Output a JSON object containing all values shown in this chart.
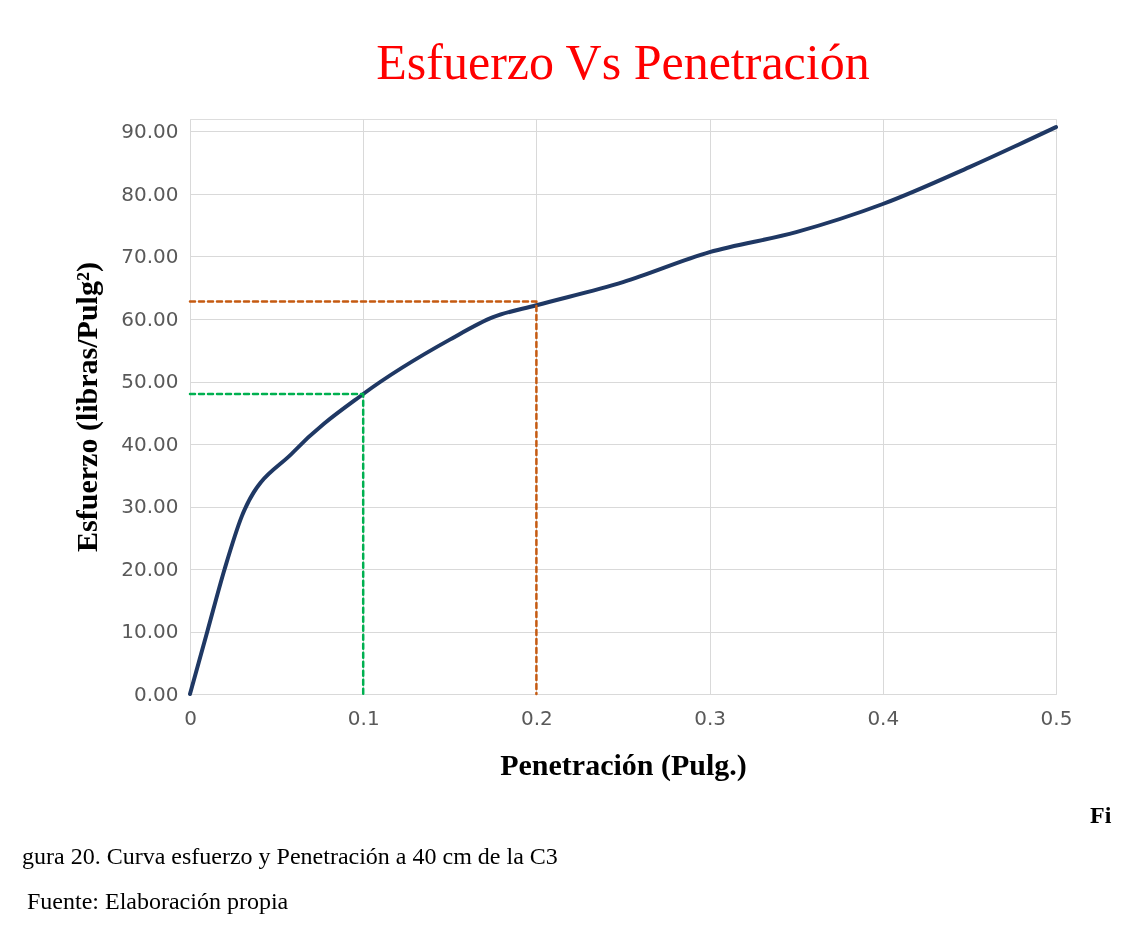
{
  "chart_data": {
    "type": "line",
    "title": "Esfuerzo Vs Penetración",
    "xlabel": "Penetración (Pulg.)",
    "ylabel": "Esfuerzo (libras/Pulg²)",
    "xlim": [
      0,
      0.5
    ],
    "xticks": [
      {
        "value": 0,
        "label": "0"
      },
      0.1,
      0.2,
      0.3,
      0.4,
      0.5
    ],
    "ylim": [
      0,
      92
    ],
    "yticks": [
      {
        "value": 0,
        "label": "0.00"
      },
      {
        "value": 10,
        "label": "10.00"
      },
      {
        "value": 20,
        "label": "20.00"
      },
      {
        "value": 30,
        "label": "30.00"
      },
      {
        "value": 40,
        "label": "40.00"
      },
      {
        "value": 50,
        "label": "50.00"
      },
      {
        "value": 60,
        "label": "60.00"
      },
      {
        "value": 70,
        "label": "70.00"
      },
      {
        "value": 80,
        "label": "80.00"
      },
      {
        "value": 90,
        "label": "90.00"
      }
    ],
    "grid": true,
    "series": [
      {
        "color": "#1f3864",
        "line_style": "solid",
        "x": [
          0,
          0.01,
          0.02,
          0.03,
          0.06,
          0.1,
          0.15,
          0.175,
          0.2,
          0.25,
          0.3,
          0.35,
          0.4,
          0.45,
          0.5
        ],
        "values": [
          0,
          10,
          20,
          28.5,
          38.8,
          48,
          56.7,
          60.3,
          62.2,
          65.9,
          70.7,
          73.9,
          78.4,
          84.3,
          90.7
        ]
      },
      {
        "color": "#00b050",
        "line_style": "dashed",
        "x": [
          0,
          0.1,
          0.1
        ],
        "values": [
          48,
          48,
          0
        ]
      },
      {
        "color": "#c55a11",
        "line_style": "dashed",
        "x": [
          0,
          0.2,
          0.2
        ],
        "values": [
          62.8,
          62.8,
          0
        ]
      }
    ],
    "annotations": [
      "Fi",
      "gura  20. Curva esfuerzo y Penetración a 40 cm de la C3",
      "Fuente: Elaboración propia"
    ]
  }
}
